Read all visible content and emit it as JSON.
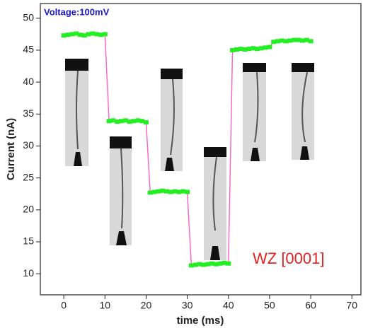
{
  "chart_data": {
    "type": "line",
    "x_label": "time (ms)",
    "y_label": "Current (nA)",
    "annotations": [
      "Voltage:100mV",
      "WZ [0001]"
    ],
    "x": [
      0,
      1,
      2,
      3,
      4,
      5,
      6,
      7,
      8,
      9,
      10,
      11,
      12,
      13,
      14,
      15,
      16,
      17,
      18,
      19,
      20,
      21,
      22,
      23,
      24,
      25,
      26,
      27,
      28,
      29,
      30,
      31,
      32,
      33,
      34,
      35,
      36,
      37,
      38,
      39,
      40,
      41,
      42,
      43,
      44,
      45,
      46,
      47,
      48,
      49,
      50,
      51,
      52,
      53,
      54,
      55,
      56,
      57,
      58,
      59,
      60
    ],
    "series": [
      {
        "color": "#22ee22",
        "line_color": "#ff66cc",
        "values": [
          47.3,
          47.4,
          47.5,
          47.6,
          47.4,
          47.3,
          47.5,
          47.6,
          47.5,
          47.4,
          47.5,
          33.9,
          34.0,
          33.8,
          33.9,
          34.0,
          33.8,
          33.9,
          34.0,
          33.9,
          33.7,
          22.7,
          22.8,
          22.9,
          23.0,
          22.9,
          22.8,
          22.9,
          22.8,
          22.9,
          22.8,
          11.3,
          11.4,
          11.5,
          11.4,
          11.5,
          11.6,
          11.5,
          11.6,
          11.7,
          11.6,
          45.0,
          45.1,
          45.2,
          45.1,
          45.2,
          45.3,
          45.2,
          45.3,
          45.4,
          45.5,
          46.3,
          46.4,
          46.5,
          46.4,
          46.5,
          46.6,
          46.6,
          46.5,
          46.6,
          46.4
        ]
      }
    ],
    "xlim": [
      -5.7,
      72.2
    ],
    "xticks": [
      0,
      10,
      20,
      30,
      40,
      50,
      60,
      70
    ],
    "ylim": [
      6.7,
      52.3
    ],
    "yticks": [
      10,
      15,
      20,
      25,
      30,
      35,
      40,
      45,
      50
    ]
  }
}
